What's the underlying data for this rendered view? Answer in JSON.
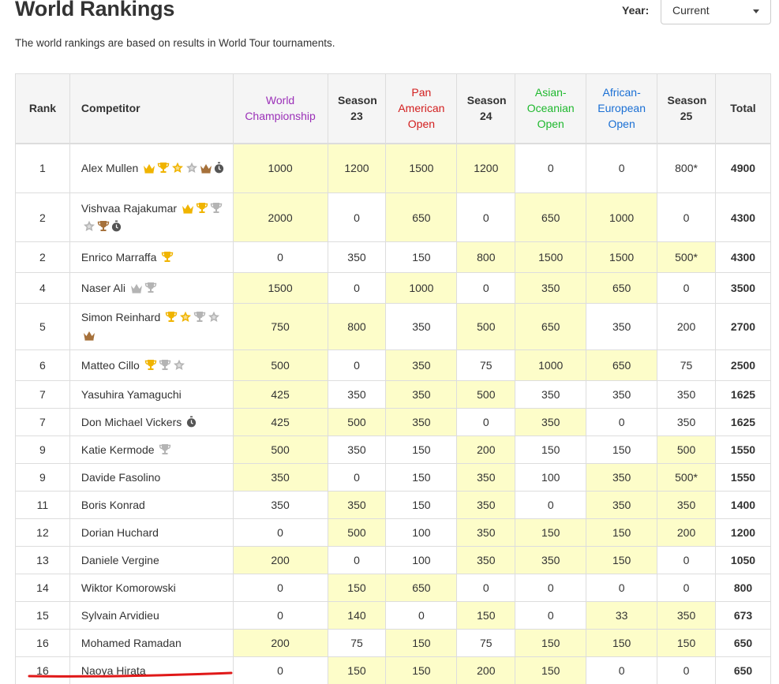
{
  "page": {
    "title": "World Rankings",
    "year_label": "Year:",
    "year_value": "Current",
    "subtitle": "The world rankings are based on results in World Tour tournaments."
  },
  "colors": {
    "highlight": "#fdfdc9",
    "world_championship": "#9b30b8",
    "pan_american": "#d21d1d",
    "asian_oceanian": "#1fb82e",
    "african_european": "#1a6fd4",
    "gold": "#f0b400",
    "silver": "#b4b4b4",
    "bronze": "#a6713b",
    "underline": "#e01818"
  },
  "columns": [
    {
      "label": "Rank",
      "color": ""
    },
    {
      "label": "Competitor",
      "color": ""
    },
    {
      "label": "World Championship",
      "color": "#9b30b8"
    },
    {
      "label": "Season 23",
      "color": ""
    },
    {
      "label": "Pan American Open",
      "color": "#d21d1d"
    },
    {
      "label": "Season 24",
      "color": ""
    },
    {
      "label": "Asian-Oceanian Open",
      "color": "#1fb82e"
    },
    {
      "label": "African-European Open",
      "color": "#1a6fd4"
    },
    {
      "label": "Season 25",
      "color": ""
    },
    {
      "label": "Total",
      "color": ""
    }
  ],
  "rows": [
    {
      "rank": "1",
      "name": "Alex Mullen",
      "icons": [
        "crown-gold",
        "trophy-gold",
        "star-gold",
        "star-silver",
        "crown-bronze",
        "stopwatch"
      ],
      "scores": [
        "1000",
        "1200",
        "1500",
        "1200",
        "0",
        "0",
        "800*"
      ],
      "highlighted": [
        true,
        true,
        true,
        true,
        false,
        false,
        false
      ],
      "total": "4900"
    },
    {
      "rank": "2",
      "name": "Vishvaa Rajakumar",
      "icons": [
        "crown-gold",
        "trophy-gold",
        "trophy-silver",
        "star-silver",
        "trophy-bronze",
        "stopwatch"
      ],
      "scores": [
        "2000",
        "0",
        "650",
        "0",
        "650",
        "1000",
        "0"
      ],
      "highlighted": [
        true,
        false,
        true,
        false,
        true,
        true,
        false
      ],
      "total": "4300"
    },
    {
      "rank": "2",
      "name": "Enrico Marraffa",
      "icons": [
        "trophy-gold"
      ],
      "scores": [
        "0",
        "350",
        "150",
        "800",
        "1500",
        "1500",
        "500*"
      ],
      "highlighted": [
        false,
        false,
        false,
        true,
        true,
        true,
        true
      ],
      "total": "4300"
    },
    {
      "rank": "4",
      "name": "Naser Ali",
      "icons": [
        "crown-silver",
        "trophy-silver"
      ],
      "scores": [
        "1500",
        "0",
        "1000",
        "0",
        "350",
        "650",
        "0"
      ],
      "highlighted": [
        true,
        false,
        true,
        false,
        true,
        true,
        false
      ],
      "total": "3500"
    },
    {
      "rank": "5",
      "name": "Simon Reinhard",
      "icons": [
        "trophy-gold",
        "star-gold",
        "trophy-silver",
        "star-silver",
        "crown-bronze"
      ],
      "scores": [
        "750",
        "800",
        "350",
        "500",
        "650",
        "350",
        "200"
      ],
      "highlighted": [
        true,
        true,
        false,
        true,
        true,
        false,
        false
      ],
      "total": "2700"
    },
    {
      "rank": "6",
      "name": "Matteo Cillo",
      "icons": [
        "trophy-gold",
        "trophy-silver",
        "star-silver"
      ],
      "scores": [
        "500",
        "0",
        "350",
        "75",
        "1000",
        "650",
        "75"
      ],
      "highlighted": [
        true,
        false,
        true,
        false,
        true,
        true,
        false
      ],
      "total": "2500"
    },
    {
      "rank": "7",
      "name": "Yasuhira Yamaguchi",
      "icons": [],
      "scores": [
        "425",
        "350",
        "350",
        "500",
        "350",
        "350",
        "350"
      ],
      "highlighted": [
        true,
        false,
        true,
        true,
        false,
        false,
        false
      ],
      "total": "1625"
    },
    {
      "rank": "7",
      "name": "Don Michael Vickers",
      "icons": [
        "stopwatch"
      ],
      "scores": [
        "425",
        "500",
        "350",
        "0",
        "350",
        "0",
        "350"
      ],
      "highlighted": [
        true,
        true,
        true,
        false,
        true,
        false,
        false
      ],
      "total": "1625"
    },
    {
      "rank": "9",
      "name": "Katie Kermode",
      "icons": [
        "trophy-silver"
      ],
      "scores": [
        "500",
        "350",
        "150",
        "200",
        "150",
        "150",
        "500"
      ],
      "highlighted": [
        true,
        false,
        false,
        true,
        false,
        false,
        true
      ],
      "total": "1550"
    },
    {
      "rank": "9",
      "name": "Davide Fasolino",
      "icons": [],
      "scores": [
        "350",
        "0",
        "150",
        "350",
        "100",
        "350",
        "500*"
      ],
      "highlighted": [
        true,
        false,
        false,
        true,
        false,
        true,
        true
      ],
      "total": "1550"
    },
    {
      "rank": "11",
      "name": "Boris Konrad",
      "icons": [],
      "scores": [
        "350",
        "350",
        "150",
        "350",
        "0",
        "350",
        "350"
      ],
      "highlighted": [
        false,
        true,
        false,
        true,
        false,
        true,
        true
      ],
      "total": "1400"
    },
    {
      "rank": "12",
      "name": "Dorian Huchard",
      "icons": [],
      "scores": [
        "0",
        "500",
        "100",
        "350",
        "150",
        "150",
        "200"
      ],
      "highlighted": [
        false,
        true,
        false,
        true,
        true,
        true,
        true
      ],
      "total": "1200"
    },
    {
      "rank": "13",
      "name": "Daniele Vergine",
      "icons": [],
      "scores": [
        "200",
        "0",
        "100",
        "350",
        "350",
        "150",
        "0"
      ],
      "highlighted": [
        true,
        false,
        false,
        true,
        true,
        true,
        false
      ],
      "total": "1050"
    },
    {
      "rank": "14",
      "name": "Wiktor Komorowski",
      "icons": [],
      "scores": [
        "0",
        "150",
        "650",
        "0",
        "0",
        "0",
        "0"
      ],
      "highlighted": [
        false,
        true,
        true,
        false,
        false,
        false,
        false
      ],
      "total": "800"
    },
    {
      "rank": "15",
      "name": "Sylvain Arvidieu",
      "icons": [],
      "scores": [
        "0",
        "140",
        "0",
        "150",
        "0",
        "33",
        "350"
      ],
      "highlighted": [
        false,
        true,
        false,
        true,
        false,
        true,
        true
      ],
      "total": "673"
    },
    {
      "rank": "16",
      "name": "Mohamed Ramadan",
      "icons": [],
      "scores": [
        "200",
        "75",
        "150",
        "75",
        "150",
        "150",
        "150"
      ],
      "highlighted": [
        true,
        false,
        true,
        false,
        true,
        true,
        true
      ],
      "total": "650"
    },
    {
      "rank": "16",
      "name": "Naoya Hirata",
      "icons": [],
      "scores": [
        "0",
        "150",
        "150",
        "200",
        "150",
        "0",
        "0"
      ],
      "highlighted": [
        false,
        true,
        true,
        true,
        true,
        false,
        false
      ],
      "total": "650"
    }
  ]
}
